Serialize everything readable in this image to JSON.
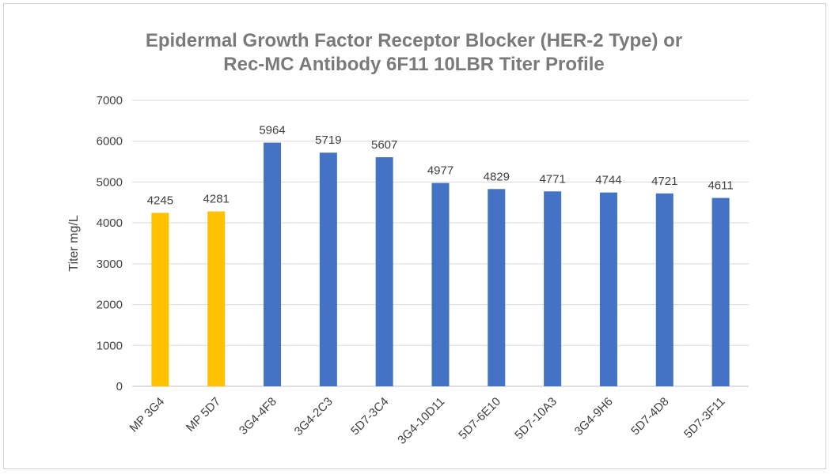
{
  "chart_data": {
    "type": "bar",
    "title_lines": [
      "Epidermal Growth Factor Receptor Blocker (HER-2 Type) or",
      "Rec-MC Antibody 6F11 10LBR Titer Profile"
    ],
    "xlabel": "",
    "ylabel": "Titer mg/L",
    "ylim": [
      0,
      7000
    ],
    "yticks": [
      0,
      1000,
      2000,
      3000,
      4000,
      5000,
      6000,
      7000
    ],
    "grid": true,
    "legend": "none",
    "categories": [
      "MP 3G4",
      "MP 5D7",
      "3G4-4F8",
      "3G4-2C3",
      "5D7-3C4",
      "3G4-10D11",
      "5D7-6E10",
      "5D7-10A3",
      "3G4-9H6",
      "5D7-4D8",
      "5D7-3F11"
    ],
    "values": [
      4245,
      4281,
      5964,
      5719,
      5607,
      4977,
      4829,
      4771,
      4744,
      4721,
      4611
    ],
    "bar_colors": [
      "#FFC000",
      "#FFC000",
      "#4472C4",
      "#4472C4",
      "#4472C4",
      "#4472C4",
      "#4472C4",
      "#4472C4",
      "#4472C4",
      "#4472C4",
      "#4472C4"
    ]
  }
}
